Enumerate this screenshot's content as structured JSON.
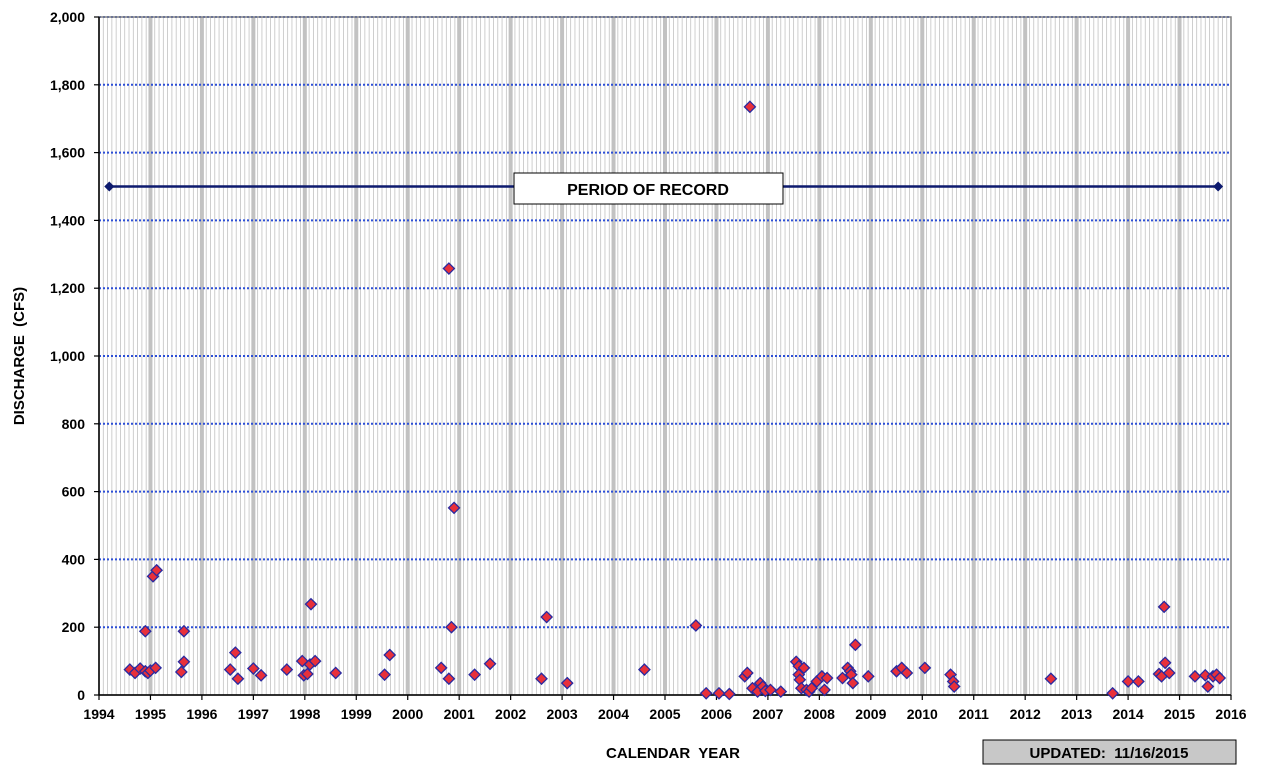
{
  "chart_data": {
    "type": "scatter",
    "xlabel": "CALENDAR  YEAR",
    "ylabel": "DISCHARGE  (CFS)",
    "xlim": [
      1994,
      2016
    ],
    "ylim": [
      0,
      2000
    ],
    "x_ticks": [
      "1994",
      "1995",
      "1996",
      "1997",
      "1998",
      "1999",
      "2000",
      "2001",
      "2002",
      "2003",
      "2004",
      "2005",
      "2006",
      "2007",
      "2008",
      "2009",
      "2010",
      "2011",
      "2012",
      "2013",
      "2014",
      "2015",
      "2016"
    ],
    "y_ticks": [
      "0",
      "200",
      "400",
      "600",
      "800",
      "1,000",
      "1,200",
      "1,400",
      "1,600",
      "1,800",
      "2,000"
    ],
    "y_tick_values": [
      0,
      200,
      400,
      600,
      800,
      1000,
      1200,
      1400,
      1600,
      1800,
      2000
    ],
    "grid": true,
    "colors": {
      "marker_fill": "#e8303a",
      "marker_edge": "#2a2aa0",
      "record_line": "#0d1a6e",
      "h_grid": "#2d4fd6",
      "v_grid": "#c2c2c2",
      "frame": "#808080"
    },
    "period_of_record": {
      "label": "PERIOD  OF  RECORD",
      "start": 1994.2,
      "end": 2015.75,
      "y": 1500
    },
    "updated": "UPDATED:  11/16/2015",
    "series": [
      {
        "points": [
          [
            1994.6,
            75
          ],
          [
            1994.7,
            65
          ],
          [
            1994.8,
            78
          ],
          [
            1994.9,
            70
          ],
          [
            1994.95,
            65
          ],
          [
            1995.0,
            72
          ],
          [
            1994.9,
            188
          ],
          [
            1995.05,
            350
          ],
          [
            1995.12,
            368
          ],
          [
            1995.1,
            80
          ],
          [
            1995.6,
            68
          ],
          [
            1995.65,
            98
          ],
          [
            1995.65,
            188
          ],
          [
            1996.55,
            75
          ],
          [
            1996.65,
            125
          ],
          [
            1996.7,
            48
          ],
          [
            1997.0,
            78
          ],
          [
            1997.15,
            58
          ],
          [
            1997.65,
            75
          ],
          [
            1997.95,
            100
          ],
          [
            1997.98,
            58
          ],
          [
            1998.05,
            62
          ],
          [
            1998.1,
            90
          ],
          [
            1998.12,
            268
          ],
          [
            1998.2,
            100
          ],
          [
            1998.6,
            65
          ],
          [
            1999.55,
            60
          ],
          [
            1999.65,
            118
          ],
          [
            2000.65,
            80
          ],
          [
            2000.8,
            48
          ],
          [
            2000.8,
            1258
          ],
          [
            2000.85,
            200
          ],
          [
            2000.9,
            552
          ],
          [
            2001.3,
            60
          ],
          [
            2001.6,
            92
          ],
          [
            2002.6,
            48
          ],
          [
            2002.7,
            230
          ],
          [
            2003.1,
            35
          ],
          [
            2004.6,
            75
          ],
          [
            2005.6,
            205
          ],
          [
            2005.8,
            5
          ],
          [
            2006.05,
            5
          ],
          [
            2006.25,
            3
          ],
          [
            2006.55,
            55
          ],
          [
            2006.6,
            65
          ],
          [
            2006.65,
            1735
          ],
          [
            2006.7,
            20
          ],
          [
            2006.8,
            10
          ],
          [
            2006.85,
            35
          ],
          [
            2006.9,
            25
          ],
          [
            2006.95,
            12
          ],
          [
            2007.05,
            15
          ],
          [
            2007.25,
            10
          ],
          [
            2007.55,
            98
          ],
          [
            2007.6,
            85
          ],
          [
            2007.6,
            60
          ],
          [
            2007.62,
            45
          ],
          [
            2007.65,
            20
          ],
          [
            2007.7,
            80
          ],
          [
            2007.75,
            15
          ],
          [
            2007.8,
            10
          ],
          [
            2007.85,
            20
          ],
          [
            2007.95,
            40
          ],
          [
            2008.05,
            55
          ],
          [
            2008.1,
            15
          ],
          [
            2008.15,
            50
          ],
          [
            2008.45,
            50
          ],
          [
            2008.55,
            80
          ],
          [
            2008.6,
            70
          ],
          [
            2008.62,
            60
          ],
          [
            2008.65,
            35
          ],
          [
            2008.7,
            148
          ],
          [
            2008.95,
            55
          ],
          [
            2009.5,
            70
          ],
          [
            2009.6,
            80
          ],
          [
            2009.7,
            65
          ],
          [
            2010.05,
            80
          ],
          [
            2010.55,
            60
          ],
          [
            2010.6,
            40
          ],
          [
            2010.62,
            25
          ],
          [
            2012.5,
            48
          ],
          [
            2013.7,
            5
          ],
          [
            2014.0,
            40
          ],
          [
            2014.2,
            40
          ],
          [
            2014.6,
            62
          ],
          [
            2014.65,
            55
          ],
          [
            2014.7,
            260
          ],
          [
            2014.72,
            95
          ],
          [
            2014.8,
            65
          ],
          [
            2015.3,
            55
          ],
          [
            2015.5,
            58
          ],
          [
            2015.55,
            25
          ],
          [
            2015.65,
            55
          ],
          [
            2015.72,
            60
          ],
          [
            2015.78,
            50
          ]
        ]
      }
    ]
  }
}
